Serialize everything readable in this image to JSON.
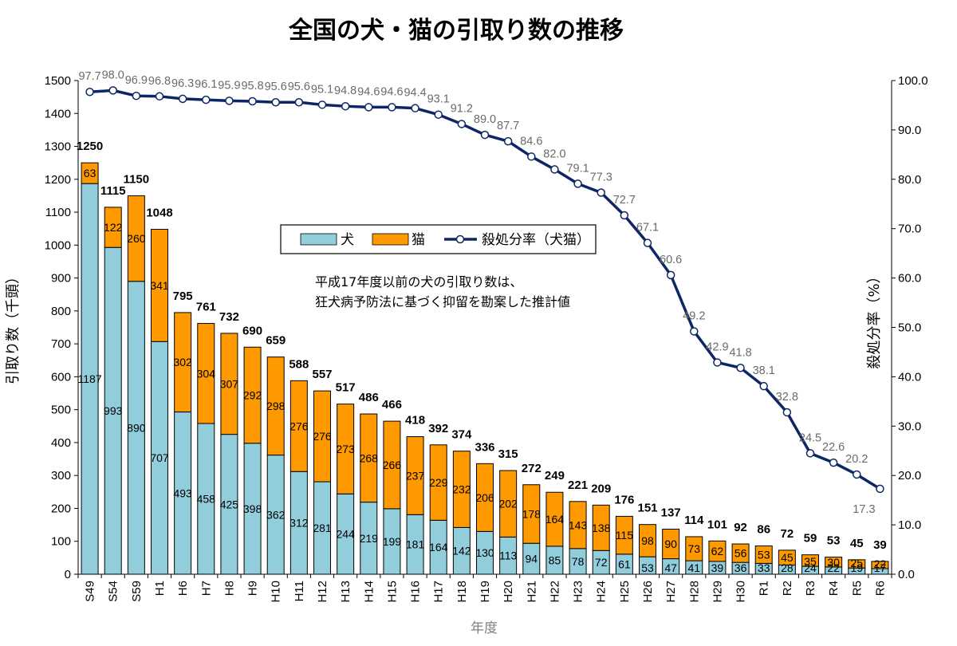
{
  "chart_data": {
    "type": "bar",
    "title": "全国の犬・猫の引取り数の推移",
    "xlabel": "年度",
    "ylabel": "引取り数（千頭）",
    "ylabel_right": "殺処分率（%）",
    "ylim": [
      0,
      1500
    ],
    "ylim_right": [
      0,
      100
    ],
    "yticks": [
      "0",
      "100",
      "200",
      "300",
      "400",
      "500",
      "600",
      "700",
      "800",
      "900",
      "1000",
      "1100",
      "1200",
      "1300",
      "1400",
      "1500"
    ],
    "yticks_right": [
      "0.0",
      "10.0",
      "20.0",
      "30.0",
      "40.0",
      "50.0",
      "60.0",
      "70.0",
      "80.0",
      "90.0",
      "100.0"
    ],
    "categories": [
      "S49",
      "S54",
      "S59",
      "H1",
      "H6",
      "H7",
      "H8",
      "H9",
      "H10",
      "H11",
      "H12",
      "H13",
      "H14",
      "H15",
      "H16",
      "H17",
      "H18",
      "H19",
      "H20",
      "H21",
      "H22",
      "H23",
      "H24",
      "H25",
      "H26",
      "H27",
      "H28",
      "H29",
      "H30",
      "R1",
      "R2",
      "R3",
      "R4",
      "R5",
      "R6"
    ],
    "series": [
      {
        "name": "犬",
        "type": "bar",
        "stack": "total",
        "color": "#92cddc",
        "values": [
          1187,
          993,
          890,
          707,
          493,
          458,
          425,
          398,
          362,
          312,
          281,
          244,
          219,
          199,
          181,
          164,
          142,
          130,
          113,
          94,
          85,
          78,
          72,
          61,
          53,
          47,
          41,
          39,
          36,
          33,
          28,
          24,
          22,
          19,
          17
        ]
      },
      {
        "name": "猫",
        "type": "bar",
        "stack": "total",
        "color": "#ff9900",
        "values": [
          63,
          122,
          260,
          341,
          302,
          304,
          307,
          292,
          298,
          276,
          276,
          273,
          268,
          266,
          237,
          229,
          232,
          206,
          202,
          178,
          164,
          143,
          138,
          115,
          98,
          90,
          73,
          62,
          56,
          53,
          45,
          35,
          30,
          25,
          22
        ]
      },
      {
        "name": "殺処分率（犬猫）",
        "type": "line",
        "axis": "right",
        "color": "#0d2666",
        "values": [
          97.7,
          98.0,
          96.9,
          96.8,
          96.3,
          96.1,
          95.9,
          95.8,
          95.6,
          95.6,
          95.1,
          94.8,
          94.6,
          94.6,
          94.4,
          93.1,
          91.2,
          89.0,
          87.7,
          84.6,
          82.0,
          79.1,
          77.3,
          72.7,
          67.1,
          60.6,
          49.2,
          42.9,
          41.8,
          38.1,
          32.8,
          24.5,
          22.6,
          20.2,
          17.3
        ]
      }
    ],
    "totals": [
      1250,
      1115,
      1150,
      1048,
      795,
      761,
      732,
      690,
      659,
      588,
      557,
      517,
      486,
      466,
      418,
      392,
      374,
      336,
      315,
      272,
      249,
      221,
      209,
      176,
      151,
      137,
      114,
      101,
      92,
      86,
      72,
      59,
      53,
      45,
      39
    ],
    "legend": {
      "position": "top-center",
      "entries": [
        "犬",
        "猫",
        "殺処分率（犬猫）"
      ]
    },
    "annotations": [
      "平成17年度以前の犬の引取り数は、",
      "狂犬病予防法に基づく抑留を勘案した推計値"
    ],
    "grid": false
  }
}
